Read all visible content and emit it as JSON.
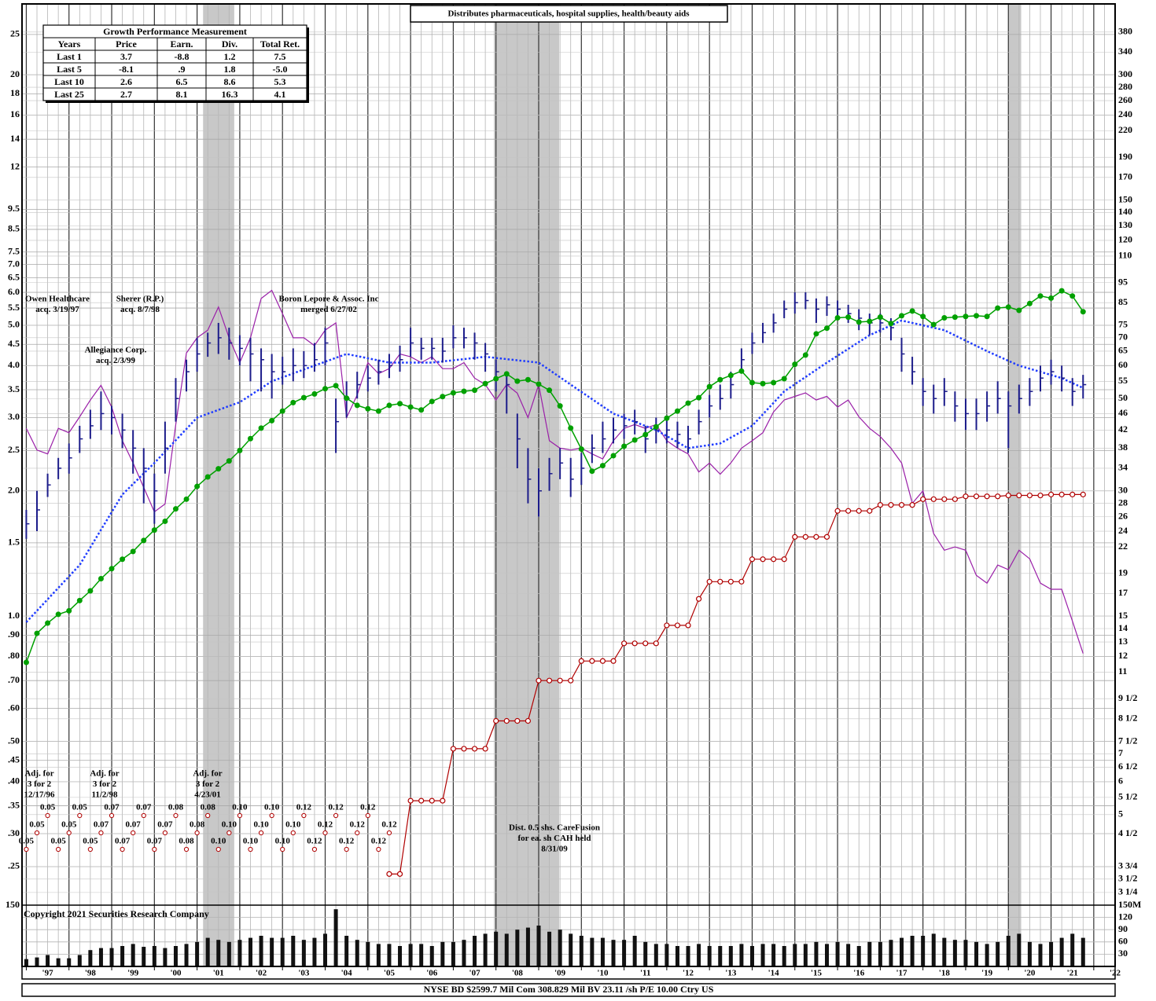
{
  "chart_data": {
    "type": "stock",
    "title": "Distributes pharmaceuticals, hospital supplies, health/beauty aids",
    "x": [
      1997,
      1997.25,
      1997.5,
      1997.75,
      1998,
      1998.25,
      1998.5,
      1998.75,
      1999,
      1999.25,
      1999.5,
      1999.75,
      2000,
      2000.25,
      2000.5,
      2000.75,
      2001,
      2001.25,
      2001.5,
      2001.75,
      2002,
      2002.25,
      2002.5,
      2002.75,
      2003,
      2003.25,
      2003.5,
      2003.75,
      2004,
      2004.25,
      2004.5,
      2004.75,
      2005,
      2005.25,
      2005.5,
      2005.75,
      2006,
      2006.25,
      2006.5,
      2006.75,
      2007,
      2007.25,
      2007.5,
      2007.75,
      2008,
      2008.25,
      2008.5,
      2008.75,
      2009,
      2009.25,
      2009.5,
      2009.75,
      2010,
      2010.25,
      2010.5,
      2010.75,
      2011,
      2011.25,
      2011.5,
      2011.75,
      2012,
      2012.25,
      2012.5,
      2012.75,
      2013,
      2013.25,
      2013.5,
      2013.75,
      2014,
      2014.25,
      2014.5,
      2014.75,
      2015,
      2015.25,
      2015.5,
      2015.75,
      2016,
      2016.25,
      2016.5,
      2016.75,
      2017,
      2017.25,
      2017.5,
      2017.75,
      2018,
      2018.25,
      2018.5,
      2018.75,
      2019,
      2019.25,
      2019.5,
      2019.75,
      2020,
      2020.25,
      2020.5,
      2020.75,
      2021,
      2021.25,
      2021.5,
      2021.75
    ],
    "xlim": [
      1996.9,
      2022.5
    ],
    "xticks": [
      {
        "value": 1997.5,
        "label": "'97"
      },
      {
        "value": 1998.5,
        "label": "'98"
      },
      {
        "value": 1999.5,
        "label": "'99"
      },
      {
        "value": 2000.5,
        "label": "'00"
      },
      {
        "value": 2001.5,
        "label": "'01"
      },
      {
        "value": 2002.5,
        "label": "'02"
      },
      {
        "value": 2003.5,
        "label": "'03"
      },
      {
        "value": 2004.5,
        "label": "'04"
      },
      {
        "value": 2005.5,
        "label": "'05"
      },
      {
        "value": 2006.5,
        "label": "'06"
      },
      {
        "value": 2007.5,
        "label": "'07"
      },
      {
        "value": 2008.5,
        "label": "'08"
      },
      {
        "value": 2009.5,
        "label": "'09"
      },
      {
        "value": 2010.5,
        "label": "'10"
      },
      {
        "value": 2011.5,
        "label": "'11"
      },
      {
        "value": 2012.5,
        "label": "'12"
      },
      {
        "value": 2013.5,
        "label": "'13"
      },
      {
        "value": 2014.5,
        "label": "'14"
      },
      {
        "value": 2015.5,
        "label": "'15"
      },
      {
        "value": 2016.5,
        "label": "'16"
      },
      {
        "value": 2017.5,
        "label": "'17"
      },
      {
        "value": 2018.5,
        "label": "'18"
      },
      {
        "value": 2019.5,
        "label": "'19"
      },
      {
        "value": 2020.5,
        "label": "'20"
      },
      {
        "value": 2021.5,
        "label": "'21"
      },
      {
        "value": 2022.5,
        "label": "'22"
      }
    ],
    "log": true,
    "grid": true,
    "ylim": [
      0.202,
      29.6
    ],
    "yticks": [
      25,
      20,
      18,
      16,
      14,
      12,
      9.5,
      8.5,
      7.5,
      {
        "value": 7,
        "label": "7.0"
      },
      6.5,
      {
        "value": 6,
        "label": "6.0"
      },
      5.5,
      {
        "value": 5,
        "label": "5.0"
      },
      4.5,
      {
        "value": 4,
        "label": "4.0"
      },
      3.5,
      {
        "value": 3,
        "label": "3.0"
      },
      2.5,
      {
        "value": 2,
        "label": "2.0"
      },
      1.5,
      {
        "value": 1,
        "label": "1.0"
      },
      {
        "value": 0.9,
        "label": ".90"
      },
      {
        "value": 0.8,
        "label": ".80"
      },
      {
        "value": 0.7,
        "label": ".70"
      },
      {
        "value": 0.6,
        "label": ".60"
      },
      {
        "value": 0.5,
        "label": ".50"
      },
      {
        "value": 0.45,
        "label": ".45"
      },
      {
        "value": 0.4,
        "label": ".40"
      },
      {
        "value": 0.35,
        "label": ".35"
      },
      {
        "value": 0.3,
        "label": ".30"
      },
      {
        "value": 0.25,
        "label": ".25"
      }
    ],
    "y2lim": [
      3.03,
      444
    ],
    "y2ticks": [
      380,
      340,
      300,
      280,
      260,
      240,
      220,
      190,
      170,
      150,
      140,
      130,
      120,
      110,
      95,
      85,
      75,
      70,
      65,
      60,
      55,
      50,
      46,
      42,
      38,
      34,
      30,
      28,
      26,
      24,
      22,
      19,
      17,
      15,
      14,
      13,
      12,
      11,
      {
        "value": 9.5,
        "label": "9 1/2"
      },
      {
        "value": 8.5,
        "label": "8 1/2"
      },
      {
        "value": 7.5,
        "label": "7 1/2"
      },
      7,
      {
        "value": 6.5,
        "label": "6 1/2"
      },
      6,
      {
        "value": 5.5,
        "label": "5 1/2"
      },
      5,
      {
        "value": 4.5,
        "label": "4 1/2"
      },
      {
        "value": 3.75,
        "label": "3 3/4"
      },
      {
        "value": 3.5,
        "label": "3 1/2"
      },
      {
        "value": 3.25,
        "label": "3 1/4"
      }
    ],
    "shading": [
      [
        2001.14,
        2001.87
      ],
      [
        2007.95,
        2009.48
      ],
      [
        2020.0,
        2020.3
      ]
    ],
    "price": {
      "axis": "y2",
      "color": "#1c1c8a",
      "high": [
        27,
        30,
        33,
        36,
        39,
        43,
        47,
        52,
        48,
        46,
        42,
        38,
        33,
        44,
        56,
        62,
        70,
        72,
        76,
        74,
        71,
        70,
        66,
        64,
        63,
        66,
        65,
        68,
        74,
        50,
        55,
        58,
        60,
        62,
        64,
        67,
        74,
        70,
        70,
        70,
        75,
        74,
        72,
        68,
        62,
        58,
        46,
        38,
        34,
        36,
        38,
        36,
        37,
        41,
        44,
        45,
        46,
        47,
        43,
        45,
        45,
        44,
        43,
        47,
        51,
        54,
        58,
        66,
        72,
        76,
        80,
        86,
        90,
        90,
        87,
        88,
        86,
        84,
        82,
        80,
        80,
        78,
        70,
        63,
        56,
        54,
        56,
        52,
        50,
        50,
        52,
        55,
        52,
        54,
        56,
        60,
        62,
        60,
        56,
        57
      ],
      "low": [
        23,
        24,
        29,
        32,
        33,
        37,
        40,
        42,
        41,
        38,
        33,
        28,
        25,
        33,
        44,
        52,
        58,
        63,
        64,
        62,
        60,
        55,
        52,
        50,
        54,
        55,
        56,
        58,
        60,
        37,
        45,
        50,
        52,
        54,
        56,
        58,
        63,
        62,
        62,
        61,
        66,
        66,
        62,
        58,
        52,
        46,
        34,
        28,
        26,
        30,
        32,
        29,
        31,
        35,
        37,
        39,
        40,
        41,
        37,
        39,
        39,
        38,
        37,
        41,
        45,
        47,
        50,
        58,
        64,
        68,
        72,
        78,
        80,
        82,
        76,
        79,
        78,
        76,
        73,
        71,
        72,
        69,
        58,
        54,
        48,
        46,
        48,
        44,
        42,
        42,
        44,
        46,
        38,
        46,
        48,
        52,
        54,
        52,
        48,
        50
      ],
      "close": [
        25,
        27,
        31,
        34,
        36,
        40,
        43,
        46,
        45,
        42,
        38,
        34,
        30,
        38,
        50,
        58,
        64,
        68,
        70,
        68,
        66,
        64,
        62,
        58,
        58,
        60,
        60,
        62,
        68,
        44,
        50,
        54,
        56,
        58,
        60,
        62,
        68,
        66,
        66,
        65,
        70,
        70,
        68,
        64,
        58,
        54,
        40,
        32,
        30,
        33,
        35,
        32,
        34,
        38,
        40,
        42,
        43,
        44,
        40,
        42,
        42,
        41,
        40,
        44,
        48,
        50,
        54,
        62,
        68,
        72,
        76,
        82,
        85,
        86,
        82,
        84,
        82,
        80,
        78,
        76,
        76,
        74,
        64,
        58,
        52,
        50,
        52,
        48,
        46,
        46,
        48,
        50,
        48,
        50,
        52,
        56,
        58,
        56,
        52,
        54
      ]
    },
    "earnings": {
      "color": "#00a000",
      "values": [
        0.774,
        0.909,
        0.962,
        1.01,
        1.03,
        1.09,
        1.15,
        1.23,
        1.3,
        1.37,
        1.43,
        1.52,
        1.61,
        1.69,
        1.81,
        1.91,
        2.05,
        2.16,
        2.26,
        2.36,
        2.5,
        2.67,
        2.83,
        2.95,
        3.11,
        3.26,
        3.35,
        3.42,
        3.52,
        3.58,
        3.34,
        3.21,
        3.15,
        3.11,
        3.21,
        3.24,
        3.18,
        3.13,
        3.28,
        3.37,
        3.44,
        3.47,
        3.49,
        3.62,
        3.72,
        3.82,
        3.67,
        3.7,
        3.61,
        3.49,
        3.2,
        2.83,
        2.52,
        2.23,
        2.3,
        2.43,
        2.56,
        2.65,
        2.73,
        2.85,
        2.99,
        3.11,
        3.25,
        3.35,
        3.56,
        3.7,
        3.79,
        3.88,
        3.64,
        3.62,
        3.64,
        3.72,
        4.03,
        4.24,
        4.77,
        4.92,
        5.21,
        5.23,
        5.09,
        5.11,
        5.23,
        5.05,
        5.27,
        5.41,
        5.25,
        5.02,
        5.21,
        5.23,
        5.25,
        5.27,
        5.25,
        5.5,
        5.53,
        5.43,
        5.64,
        5.88,
        5.81,
        6.05,
        5.88,
        5.39
      ]
    },
    "relative_strength": {
      "axis": "y2",
      "color": "#9a1fa8",
      "values": [
        42.4,
        37.6,
        36.8,
        42.4,
        41.4,
        45.2,
        49.6,
        53.8,
        47.7,
        39.6,
        35,
        30.6,
        26.7,
        27.9,
        43.3,
        64.3,
        70,
        73,
        83,
        70,
        61,
        70,
        87,
        91,
        80,
        70,
        70,
        67,
        73,
        76,
        45,
        51,
        61,
        57.4,
        59,
        64,
        63,
        61,
        63,
        59,
        59,
        61,
        56,
        54,
        49.6,
        54,
        51.5,
        45,
        54,
        39.6,
        38,
        37.6,
        38,
        36.8,
        35.8,
        39.6,
        42.4,
        43.3,
        42.4,
        43.3,
        39.6,
        38,
        36.8,
        33.3,
        35,
        32.9,
        35,
        38,
        39.6,
        41.4,
        46.4,
        49.6,
        50.6,
        51.6,
        49.6,
        50.6,
        47.7,
        49.6,
        45.2,
        42.4,
        40.5,
        38,
        35,
        28,
        30,
        23.7,
        21.6,
        22,
        21.6,
        18.8,
        18,
        19.9,
        19.4,
        21.6,
        20.6,
        18,
        17.4,
        17.4,
        14.6,
        12.2
      ]
    },
    "moving_average": {
      "axis": "y2",
      "color": "#1f3cff",
      "x": [
        1997,
        1998.25,
        1999.25,
        2000,
        2001,
        2002,
        2002.75,
        2003.75,
        2004.5,
        2005.5,
        2006.5,
        2007.75,
        2009,
        2009.75,
        2010.75,
        2011.75,
        2012.5,
        2013.25,
        2014,
        2014.75,
        2015.75,
        2016.75,
        2017.5,
        2018.5,
        2019.5,
        2020.25,
        2021.25,
        2021.75
      ],
      "values": [
        14.5,
        19.9,
        29.4,
        35,
        45,
        49,
        55,
        60,
        64,
        61,
        61,
        63,
        61,
        54,
        46,
        42,
        38,
        39,
        43,
        52,
        61,
        71,
        77,
        73,
        65,
        60,
        56,
        53
      ]
    },
    "dividends": {
      "color": "#b00000",
      "values": [
        null,
        null,
        null,
        null,
        null,
        null,
        null,
        null,
        null,
        null,
        null,
        null,
        null,
        null,
        null,
        null,
        null,
        null,
        null,
        null,
        null,
        null,
        null,
        null,
        null,
        null,
        null,
        null,
        null,
        null,
        null,
        null,
        null,
        null,
        0.24,
        0.24,
        0.36,
        0.36,
        0.36,
        0.36,
        0.48,
        0.48,
        0.48,
        0.48,
        0.56,
        0.56,
        0.56,
        0.56,
        0.7,
        0.7,
        0.7,
        0.7,
        0.78,
        0.78,
        0.78,
        0.78,
        0.86,
        0.86,
        0.86,
        0.86,
        0.95,
        0.95,
        0.95,
        1.1,
        1.21,
        1.21,
        1.21,
        1.21,
        1.37,
        1.37,
        1.37,
        1.37,
        1.55,
        1.55,
        1.55,
        1.55,
        1.79,
        1.79,
        1.79,
        1.79,
        1.85,
        1.85,
        1.85,
        1.85,
        1.91,
        1.91,
        1.91,
        1.91,
        1.94,
        1.94,
        1.94,
        1.94,
        1.95,
        1.95,
        1.95,
        1.95,
        1.96,
        1.96,
        1.96,
        1.96
      ]
    },
    "dividend_labels": {
      "values": [
        0.05,
        0.05,
        0.05,
        0.05,
        0.05,
        0.05,
        0.05,
        0.07,
        0.07,
        0.07,
        0.07,
        0.07,
        0.07,
        0.07,
        0.08,
        0.08,
        0.08,
        0.08,
        0.1,
        0.1,
        0.1,
        0.1,
        0.1,
        0.1,
        0.1,
        0.1,
        0.12,
        0.12,
        0.12,
        0.12,
        0.12,
        0.12,
        0.12,
        0.12,
        0.12
      ],
      "value_labels": [
        "0.05",
        "0.05",
        "0.05",
        "0.05",
        "0.05",
        "0.05",
        "0.05",
        "0.07",
        "0.07",
        "0.07",
        "0.07",
        "0.07",
        "0.07",
        "0.07",
        "0.08",
        "0.08",
        "0.08",
        "0.08",
        "0.10",
        "0.10",
        "0.10",
        "0.10",
        "0.10",
        "0.10",
        "0.10",
        "0.10",
        "0.12",
        "0.12",
        "0.12",
        "0.12",
        "0.12",
        "0.12",
        "0.12",
        "0.12",
        "0.12"
      ]
    },
    "volume": {
      "color": "#111111",
      "ylim": [
        0,
        150
      ],
      "yticks": [
        30,
        60,
        90,
        120,
        {
          "value": 150,
          "label": "150M"
        }
      ],
      "left_ticks": [
        150
      ],
      "values": [
        18,
        22,
        28,
        20,
        20,
        28,
        40,
        45,
        45,
        50,
        55,
        48,
        50,
        45,
        50,
        55,
        60,
        70,
        65,
        60,
        65,
        70,
        75,
        70,
        70,
        75,
        65,
        70,
        80,
        140,
        75,
        65,
        60,
        55,
        55,
        50,
        55,
        55,
        50,
        60,
        60,
        65,
        75,
        80,
        85,
        80,
        90,
        95,
        100,
        85,
        90,
        80,
        75,
        70,
        70,
        65,
        65,
        75,
        60,
        55,
        55,
        50,
        50,
        55,
        50,
        50,
        50,
        55,
        50,
        55,
        55,
        50,
        55,
        55,
        60,
        55,
        60,
        55,
        50,
        60,
        60,
        65,
        70,
        75,
        75,
        80,
        70,
        65,
        65,
        60,
        55,
        60,
        75,
        80,
        60,
        55,
        60,
        70,
        80,
        70
      ]
    },
    "annotations": [
      {
        "lines": [
          "Owen Healthcare",
          "acq. 3/19/97"
        ]
      },
      {
        "lines": [
          "Sherer (R.P.)",
          "acq. 8/7/98"
        ]
      },
      {
        "lines": [
          "Allegiance Corp.",
          "acq. 2/3/99"
        ]
      },
      {
        "lines": [
          "Boron Lepore & Assoc. Inc",
          "merged 6/27/02"
        ]
      },
      {
        "lines": [
          "Adj. for",
          "3 for 2",
          "12/17/96"
        ]
      },
      {
        "lines": [
          "Adj. for",
          "3 for 2",
          "11/2/98"
        ]
      },
      {
        "lines": [
          "Adj. for",
          "3 for 2",
          "4/23/01"
        ]
      },
      {
        "lines": [
          "Dist. 0.5 shs. CareFusion",
          "for ea. sh CAH held",
          "8/31/09"
        ]
      }
    ],
    "growth_table": {
      "title": "Growth Performance Measurement",
      "header": [
        "Years",
        "Price",
        "Earn.",
        "Div.",
        "Total Ret."
      ],
      "rows": [
        [
          "Last 1",
          "3.7",
          "-8.8",
          "1.2",
          "7.5"
        ],
        [
          "Last 5",
          "-8.1",
          ".9",
          "1.8",
          "-5.0"
        ],
        [
          "Last 10",
          "2.6",
          "6.5",
          "8.6",
          "5.3"
        ],
        [
          "Last 25",
          "2.7",
          "8.1",
          "16.3",
          "4.1"
        ]
      ]
    },
    "copyright": "Copyright 2021 Securities Research Company",
    "footer": "NYSE BD  $2599.7 Mil Com 308.829 Mil BV 23.11 /sh  P/E 10.00 Ctry US"
  }
}
